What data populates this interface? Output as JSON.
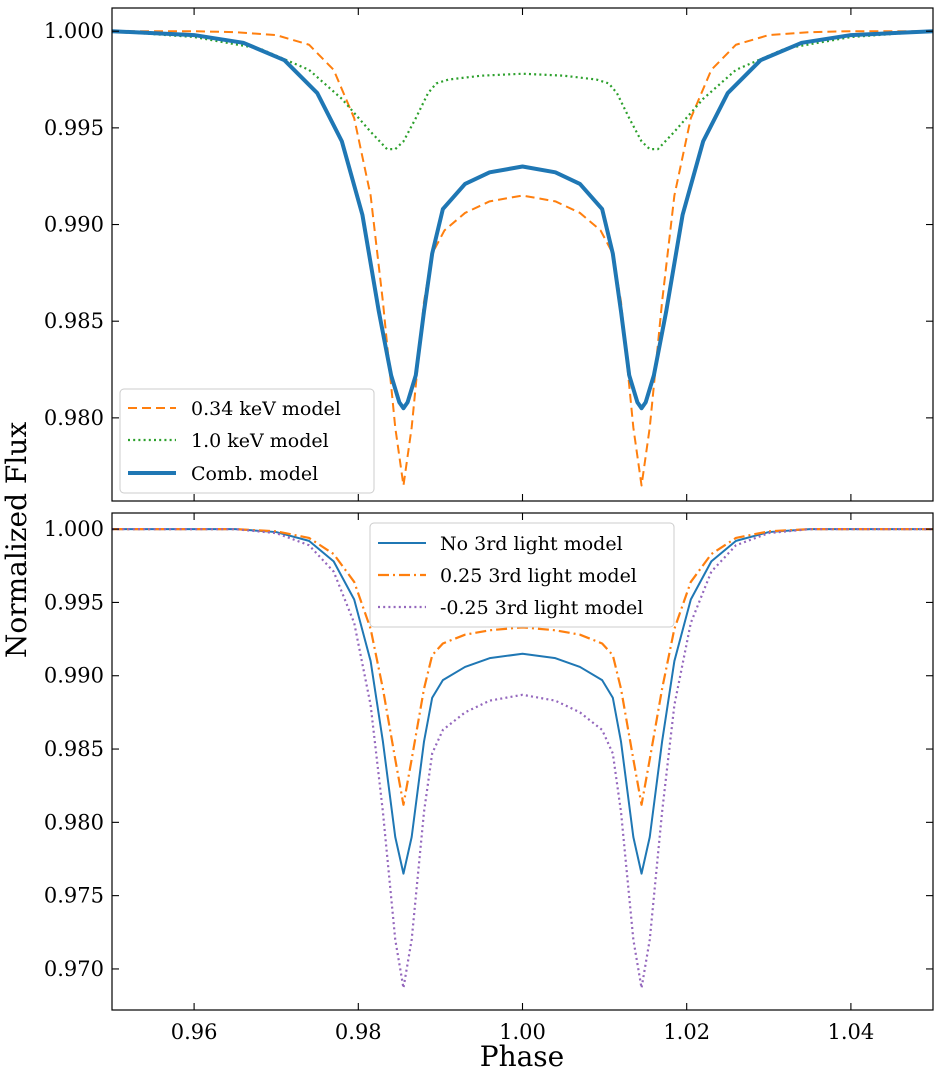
{
  "figure": {
    "ylabel": "Normalized Flux",
    "xlabel": "Phase"
  },
  "chart_data": [
    {
      "type": "line",
      "panel": "top",
      "xlim": [
        0.95,
        1.05
      ],
      "ylim": [
        0.9757,
        1.0012
      ],
      "x_ticks": [
        0.96,
        0.98,
        1.0,
        1.02,
        1.04
      ],
      "y_ticks": [
        0.98,
        0.985,
        0.99,
        0.995,
        1.0
      ],
      "y_tick_labels": [
        "0.980",
        "0.985",
        "0.990",
        "0.995",
        "1.000"
      ],
      "legend_position": "lower-left",
      "series": [
        {
          "name": "0.34 keV model",
          "color": "#ff7f0e",
          "style": "dashed",
          "x": [
            0.95,
            0.96,
            0.965,
            0.97,
            0.974,
            0.977,
            0.9795,
            0.9815,
            0.983,
            0.9845,
            0.9855,
            0.9865,
            0.988,
            0.989,
            0.9905,
            0.993,
            0.996,
            1.0,
            1.004,
            1.007,
            1.0095,
            1.011,
            1.012,
            1.0135,
            1.0145,
            1.0155,
            1.017,
            1.0185,
            1.0205,
            1.023,
            1.026,
            1.03,
            1.035,
            1.04,
            1.05
          ],
          "y": [
            1.0,
            1.0,
            0.99995,
            0.9998,
            0.9993,
            0.998,
            0.9955,
            0.9915,
            0.986,
            0.9795,
            0.9765,
            0.9795,
            0.986,
            0.9885,
            0.9897,
            0.9906,
            0.9912,
            0.9915,
            0.9912,
            0.9906,
            0.9897,
            0.9885,
            0.986,
            0.9795,
            0.9765,
            0.9795,
            0.986,
            0.9915,
            0.9955,
            0.998,
            0.9993,
            0.9998,
            0.99995,
            1.0,
            1.0
          ]
        },
        {
          "name": "1.0 keV model",
          "color": "#2ca02c",
          "style": "dotted",
          "x": [
            0.95,
            0.96,
            0.968,
            0.974,
            0.978,
            0.9815,
            0.9835,
            0.9845,
            0.9855,
            0.987,
            0.9885,
            0.9895,
            0.991,
            0.995,
            1.0,
            1.005,
            1.009,
            1.0105,
            1.0115,
            1.013,
            1.0145,
            1.0155,
            1.0165,
            1.0185,
            1.022,
            1.026,
            1.032,
            1.04,
            1.05
          ],
          "y": [
            1.0,
            0.9997,
            0.9991,
            0.998,
            0.9965,
            0.9948,
            0.9939,
            0.9939,
            0.9943,
            0.9955,
            0.9968,
            0.9973,
            0.9975,
            0.9977,
            0.9978,
            0.9977,
            0.9975,
            0.9973,
            0.9968,
            0.9955,
            0.9943,
            0.9939,
            0.9939,
            0.9948,
            0.9965,
            0.998,
            0.9991,
            0.9997,
            1.0
          ]
        },
        {
          "name": "Comb. model",
          "color": "#1f77b4",
          "style": "solid-thick",
          "x": [
            0.95,
            0.96,
            0.966,
            0.971,
            0.975,
            0.978,
            0.9805,
            0.9825,
            0.984,
            0.985,
            0.9855,
            0.986,
            0.987,
            0.988,
            0.989,
            0.9903,
            0.993,
            0.996,
            1.0,
            1.004,
            1.007,
            1.0097,
            1.011,
            1.012,
            1.013,
            1.014,
            1.0145,
            1.015,
            1.016,
            1.0175,
            1.0195,
            1.022,
            1.025,
            1.029,
            1.034,
            1.04,
            1.05
          ],
          "y": [
            1.0,
            0.9998,
            0.9994,
            0.9985,
            0.9968,
            0.9943,
            0.9905,
            0.9855,
            0.9822,
            0.9808,
            0.9805,
            0.9808,
            0.9822,
            0.9855,
            0.9885,
            0.9908,
            0.9921,
            0.9927,
            0.993,
            0.9927,
            0.9921,
            0.9908,
            0.9885,
            0.9855,
            0.9822,
            0.9808,
            0.9805,
            0.9808,
            0.9822,
            0.9855,
            0.9905,
            0.9943,
            0.9968,
            0.9985,
            0.9994,
            0.9998,
            1.0
          ]
        }
      ]
    },
    {
      "type": "line",
      "panel": "bottom",
      "xlim": [
        0.95,
        1.05
      ],
      "ylim": [
        0.9672,
        1.0011
      ],
      "x_ticks": [
        0.96,
        0.98,
        1.0,
        1.02,
        1.04
      ],
      "x_tick_labels": [
        "0.96",
        "0.98",
        "1.00",
        "1.02",
        "1.04"
      ],
      "y_ticks": [
        0.97,
        0.975,
        0.98,
        0.985,
        0.99,
        0.995,
        1.0
      ],
      "y_tick_labels": [
        "0.970",
        "0.975",
        "0.980",
        "0.985",
        "0.990",
        "0.995",
        "1.000"
      ],
      "legend_position": "top-center",
      "series": [
        {
          "name": "No 3rd light model",
          "color": "#1f77b4",
          "style": "solid",
          "x": [
            0.95,
            0.965,
            0.97,
            0.974,
            0.977,
            0.9795,
            0.9815,
            0.983,
            0.9845,
            0.9855,
            0.9865,
            0.988,
            0.989,
            0.9903,
            0.993,
            0.996,
            1.0,
            1.004,
            1.007,
            1.0097,
            1.011,
            1.012,
            1.0135,
            1.0145,
            1.0155,
            1.017,
            1.0185,
            1.0205,
            1.023,
            1.026,
            1.03,
            1.035,
            1.05
          ],
          "y": [
            1.0,
            1.0,
            0.9998,
            0.9992,
            0.9978,
            0.9952,
            0.991,
            0.9855,
            0.979,
            0.9765,
            0.979,
            0.9855,
            0.9885,
            0.9897,
            0.9906,
            0.9912,
            0.9915,
            0.9912,
            0.9906,
            0.9897,
            0.9885,
            0.9855,
            0.979,
            0.9765,
            0.979,
            0.9855,
            0.991,
            0.9952,
            0.9978,
            0.9992,
            0.9998,
            1.0,
            1.0
          ]
        },
        {
          "name": "0.25 3rd light model",
          "color": "#ff7f0e",
          "style": "dashdot",
          "x": [
            0.95,
            0.965,
            0.97,
            0.974,
            0.977,
            0.9795,
            0.9815,
            0.983,
            0.9845,
            0.9855,
            0.9865,
            0.988,
            0.989,
            0.9903,
            0.993,
            0.996,
            1.0,
            1.004,
            1.007,
            1.0097,
            1.011,
            1.012,
            1.0135,
            1.0145,
            1.0155,
            1.017,
            1.0185,
            1.0205,
            1.023,
            1.026,
            1.03,
            1.035,
            1.05
          ],
          "y": [
            1.0,
            1.0,
            0.99985,
            0.9994,
            0.9983,
            0.9964,
            0.9932,
            0.9891,
            0.9843,
            0.9812,
            0.9843,
            0.9891,
            0.9914,
            0.9922,
            0.9928,
            0.9931,
            0.9933,
            0.9931,
            0.9928,
            0.9922,
            0.9914,
            0.9891,
            0.9843,
            0.9812,
            0.9843,
            0.9891,
            0.9932,
            0.9964,
            0.9983,
            0.9994,
            0.99985,
            1.0,
            1.0
          ]
        },
        {
          "name": "-0.25 3rd light model",
          "color": "#9467bd",
          "style": "dotted",
          "x": [
            0.95,
            0.965,
            0.97,
            0.974,
            0.977,
            0.9795,
            0.9815,
            0.983,
            0.9845,
            0.9855,
            0.9865,
            0.988,
            0.989,
            0.9903,
            0.993,
            0.996,
            1.0,
            1.004,
            1.007,
            1.0097,
            1.011,
            1.012,
            1.0135,
            1.0145,
            1.0155,
            1.017,
            1.0185,
            1.0205,
            1.023,
            1.026,
            1.03,
            1.035,
            1.05
          ],
          "y": [
            1.0,
            1.0,
            0.99973,
            0.9989,
            0.9971,
            0.9936,
            0.988,
            0.9807,
            0.972,
            0.9687,
            0.972,
            0.9807,
            0.9847,
            0.9863,
            0.9875,
            0.9883,
            0.9887,
            0.9883,
            0.9875,
            0.9863,
            0.9847,
            0.9807,
            0.972,
            0.9687,
            0.972,
            0.9807,
            0.988,
            0.9936,
            0.9971,
            0.9989,
            0.99973,
            1.0,
            1.0
          ]
        }
      ]
    }
  ]
}
